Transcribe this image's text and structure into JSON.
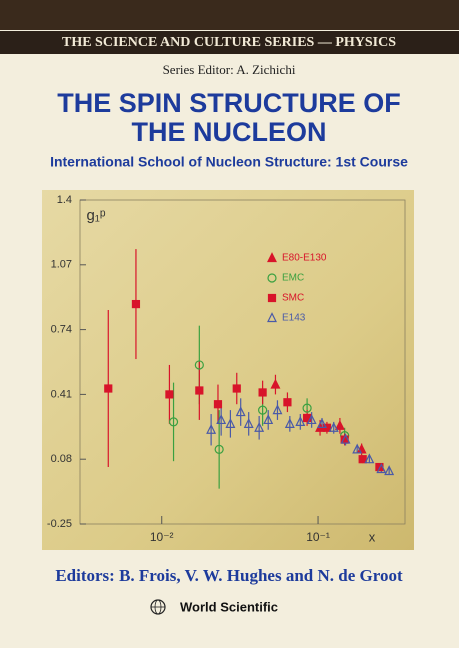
{
  "header": {
    "series": "THE SCIENCE AND CULTURE SERIES — PHYSICS",
    "editor": "Series Editor: A. Zichichi",
    "title": [
      "THE SPIN STRUCTURE OF",
      "THE NUCLEON"
    ],
    "subtitle": "International School of Nucleon Structure: 1st Course"
  },
  "chart_data": {
    "type": "scatter",
    "ylabel": "g₁ᵖ",
    "xlabel": "x",
    "xscale": "log",
    "xlim": [
      0.003,
      0.36
    ],
    "xticks": [
      {
        "value": 0.01,
        "label": "10⁻²"
      },
      {
        "value": 0.1,
        "label": "10⁻¹"
      }
    ],
    "ylim": [
      -0.25,
      1.4
    ],
    "yticks": [
      1.4,
      1.07,
      0.74,
      0.41,
      0.08,
      -0.25
    ],
    "legend": "upper right",
    "series": [
      {
        "name": "E80-E130",
        "color": "#d8142a",
        "marker": "triangle",
        "filled": true,
        "x": [
          0.0534,
          0.103,
          0.138,
          0.19
        ],
        "values": [
          0.46,
          0.24,
          0.25,
          0.13
        ],
        "errors": [
          0.05,
          0.04,
          0.04,
          0.03
        ]
      },
      {
        "name": "EMC",
        "color": "#3aa040",
        "marker": "circle",
        "filled": false,
        "x": [
          0.0119,
          0.0174,
          0.0233,
          0.0442,
          0.0851,
          0.148
        ],
        "values": [
          0.27,
          0.56,
          0.13,
          0.33,
          0.34,
          0.2
        ],
        "errors": [
          0.2,
          0.2,
          0.2,
          0.08,
          0.05,
          0.04
        ]
      },
      {
        "name": "SMC",
        "color": "#d8142a",
        "marker": "square",
        "filled": true,
        "x": [
          0.00455,
          0.00684,
          0.0112,
          0.0174,
          0.0229,
          0.0302,
          0.0442,
          0.0637,
          0.0851,
          0.114,
          0.148,
          0.193,
          0.247
        ],
        "values": [
          0.44,
          0.87,
          0.41,
          0.43,
          0.36,
          0.44,
          0.42,
          0.37,
          0.29,
          0.24,
          0.18,
          0.08,
          0.04
        ],
        "errors": [
          0.4,
          0.28,
          0.15,
          0.15,
          0.1,
          0.08,
          0.06,
          0.05,
          0.04,
          0.03,
          0.03,
          0.02,
          0.02
        ]
      },
      {
        "name": "E143",
        "color": "#4a5aa8",
        "marker": "triangle",
        "filled": false,
        "x": [
          0.0207,
          0.024,
          0.0275,
          0.032,
          0.036,
          0.042,
          0.048,
          0.055,
          0.066,
          0.077,
          0.091,
          0.106,
          0.126,
          0.15,
          0.178,
          0.213,
          0.254,
          0.285
        ],
        "values": [
          0.23,
          0.28,
          0.26,
          0.32,
          0.26,
          0.24,
          0.28,
          0.33,
          0.26,
          0.27,
          0.28,
          0.26,
          0.24,
          0.18,
          0.13,
          0.08,
          0.03,
          0.02
        ],
        "errors": [
          0.08,
          0.08,
          0.07,
          0.07,
          0.06,
          0.06,
          0.05,
          0.05,
          0.04,
          0.04,
          0.04,
          0.03,
          0.03,
          0.03,
          0.02,
          0.02,
          0.02,
          0.02
        ]
      }
    ]
  },
  "footer": {
    "editors": "Editors:  B. Frois, V. W. Hughes and N. de Groot",
    "publisher": "World Scientific"
  }
}
